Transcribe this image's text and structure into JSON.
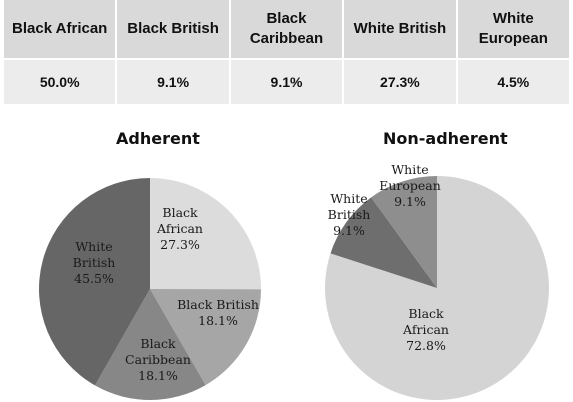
{
  "table": {
    "headers": [
      "Black African",
      "Black British",
      "Black Caribbean",
      "White British",
      "White European"
    ],
    "values": [
      "50.0%",
      "9.1%",
      "9.1%",
      "27.3%",
      "4.5%"
    ]
  },
  "chart_data": [
    {
      "type": "pie",
      "title": "Adherent",
      "slices": [
        {
          "label": [
            "Black",
            "African"
          ],
          "pct": "27.3%",
          "value": 27.3,
          "color": "#dcdcdc"
        },
        {
          "label": [
            "Black British"
          ],
          "pct": "18.1%",
          "value": 18.1,
          "color": "#a6a6a6"
        },
        {
          "label": [
            "Black",
            "Caribbean"
          ],
          "pct": "18.1%",
          "value": 18.1,
          "color": "#878787"
        },
        {
          "label": [
            "White",
            "British"
          ],
          "pct": "45.5%",
          "value": 45.5,
          "color": "#666666"
        }
      ]
    },
    {
      "type": "pie",
      "title": "Non-adherent",
      "slices": [
        {
          "label": [
            "Black",
            "African"
          ],
          "pct": "72.8%",
          "value": 72.8,
          "color": "#d4d4d4"
        },
        {
          "label": [
            "White",
            "British"
          ],
          "pct": "9.1%",
          "value": 9.1,
          "color": "#6e6e6e"
        },
        {
          "label": [
            "White",
            "European"
          ],
          "pct": "9.1%",
          "value": 9.1,
          "color": "#8e8e8e"
        }
      ]
    }
  ]
}
